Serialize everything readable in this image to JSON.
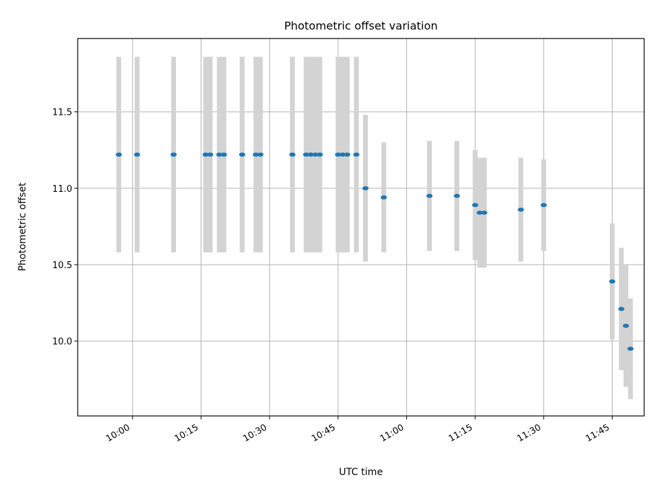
{
  "chart_data": {
    "type": "scatter",
    "title": "Photometric offset variation",
    "xlabel": "UTC time",
    "ylabel": "Photometric offset",
    "x_unit": "HH:MM UTC",
    "xlim": [
      "09:48",
      "11:52"
    ],
    "ylim": [
      9.51,
      11.98
    ],
    "x_ticks": [
      "10:00",
      "10:15",
      "10:30",
      "10:45",
      "11:00",
      "11:15",
      "11:30",
      "11:45"
    ],
    "y_ticks": [
      "10.0",
      "10.5",
      "11.0",
      "11.5"
    ],
    "grid": true,
    "legend": "none",
    "colors": {
      "point": "#1f77b4",
      "errorbar": "#d3d3d3",
      "grid": "#b0b0b0"
    },
    "points": [
      {
        "x": "09:57",
        "y": 11.22,
        "yerr": 0.64
      },
      {
        "x": "10:01",
        "y": 11.22,
        "yerr": 0.64
      },
      {
        "x": "10:09",
        "y": 11.22,
        "yerr": 0.64
      },
      {
        "x": "10:16",
        "y": 11.22,
        "yerr": 0.64
      },
      {
        "x": "10:17",
        "y": 11.22,
        "yerr": 0.64
      },
      {
        "x": "10:19",
        "y": 11.22,
        "yerr": 0.64
      },
      {
        "x": "10:20",
        "y": 11.22,
        "yerr": 0.64
      },
      {
        "x": "10:24",
        "y": 11.22,
        "yerr": 0.64
      },
      {
        "x": "10:27",
        "y": 11.22,
        "yerr": 0.64
      },
      {
        "x": "10:28",
        "y": 11.22,
        "yerr": 0.64
      },
      {
        "x": "10:35",
        "y": 11.22,
        "yerr": 0.64
      },
      {
        "x": "10:38",
        "y": 11.22,
        "yerr": 0.64
      },
      {
        "x": "10:39",
        "y": 11.22,
        "yerr": 0.64
      },
      {
        "x": "10:40",
        "y": 11.22,
        "yerr": 0.64
      },
      {
        "x": "10:41",
        "y": 11.22,
        "yerr": 0.64
      },
      {
        "x": "10:45",
        "y": 11.22,
        "yerr": 0.64
      },
      {
        "x": "10:46",
        "y": 11.22,
        "yerr": 0.64
      },
      {
        "x": "10:47",
        "y": 11.22,
        "yerr": 0.64
      },
      {
        "x": "10:49",
        "y": 11.22,
        "yerr": 0.64
      },
      {
        "x": "10:51",
        "y": 11.0,
        "yerr": 0.48
      },
      {
        "x": "10:55",
        "y": 10.94,
        "yerr": 0.36
      },
      {
        "x": "11:05",
        "y": 10.95,
        "yerr": 0.36
      },
      {
        "x": "11:11",
        "y": 10.95,
        "yerr": 0.36
      },
      {
        "x": "11:15",
        "y": 10.89,
        "yerr": 0.36
      },
      {
        "x": "11:16",
        "y": 10.84,
        "yerr": 0.36
      },
      {
        "x": "11:17",
        "y": 10.84,
        "yerr": 0.36
      },
      {
        "x": "11:25",
        "y": 10.86,
        "yerr": 0.34
      },
      {
        "x": "11:30",
        "y": 10.89,
        "yerr": 0.3
      },
      {
        "x": "11:45",
        "y": 10.39,
        "yerr": 0.38
      },
      {
        "x": "11:47",
        "y": 10.21,
        "yerr": 0.4
      },
      {
        "x": "11:48",
        "y": 10.1,
        "yerr": 0.4
      },
      {
        "x": "11:49",
        "y": 9.95,
        "yerr": 0.33
      }
    ]
  }
}
